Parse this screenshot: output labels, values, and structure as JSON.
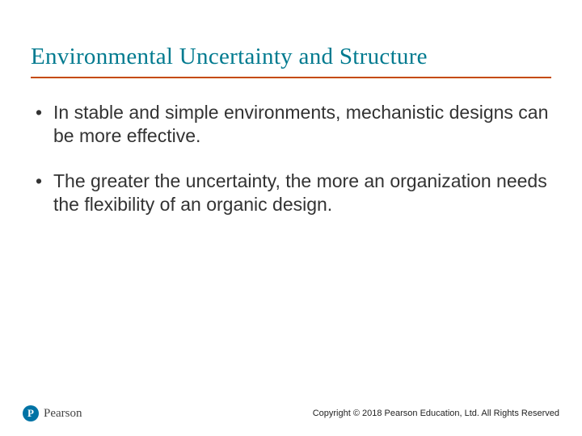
{
  "slide": {
    "title": "Environmental Uncertainty and Structure",
    "title_color": "#007a8f",
    "title_fontsize": 29,
    "underline_color": "#c54a00",
    "bullets": [
      "In stable and simple environments, mechanistic designs can be more effective.",
      "The greater the uncertainty, the more an organization needs the flexibility of an organic design."
    ],
    "bullet_color": "#333333",
    "bullet_fontsize": 23,
    "background_color": "#ffffff"
  },
  "footer": {
    "logo_letter": "P",
    "logo_brand": "Pearson",
    "logo_circle_color": "#0073a5",
    "copyright": "Copyright © 2018 Pearson Education, Ltd. All Rights Reserved",
    "copyright_fontsize": 11
  }
}
